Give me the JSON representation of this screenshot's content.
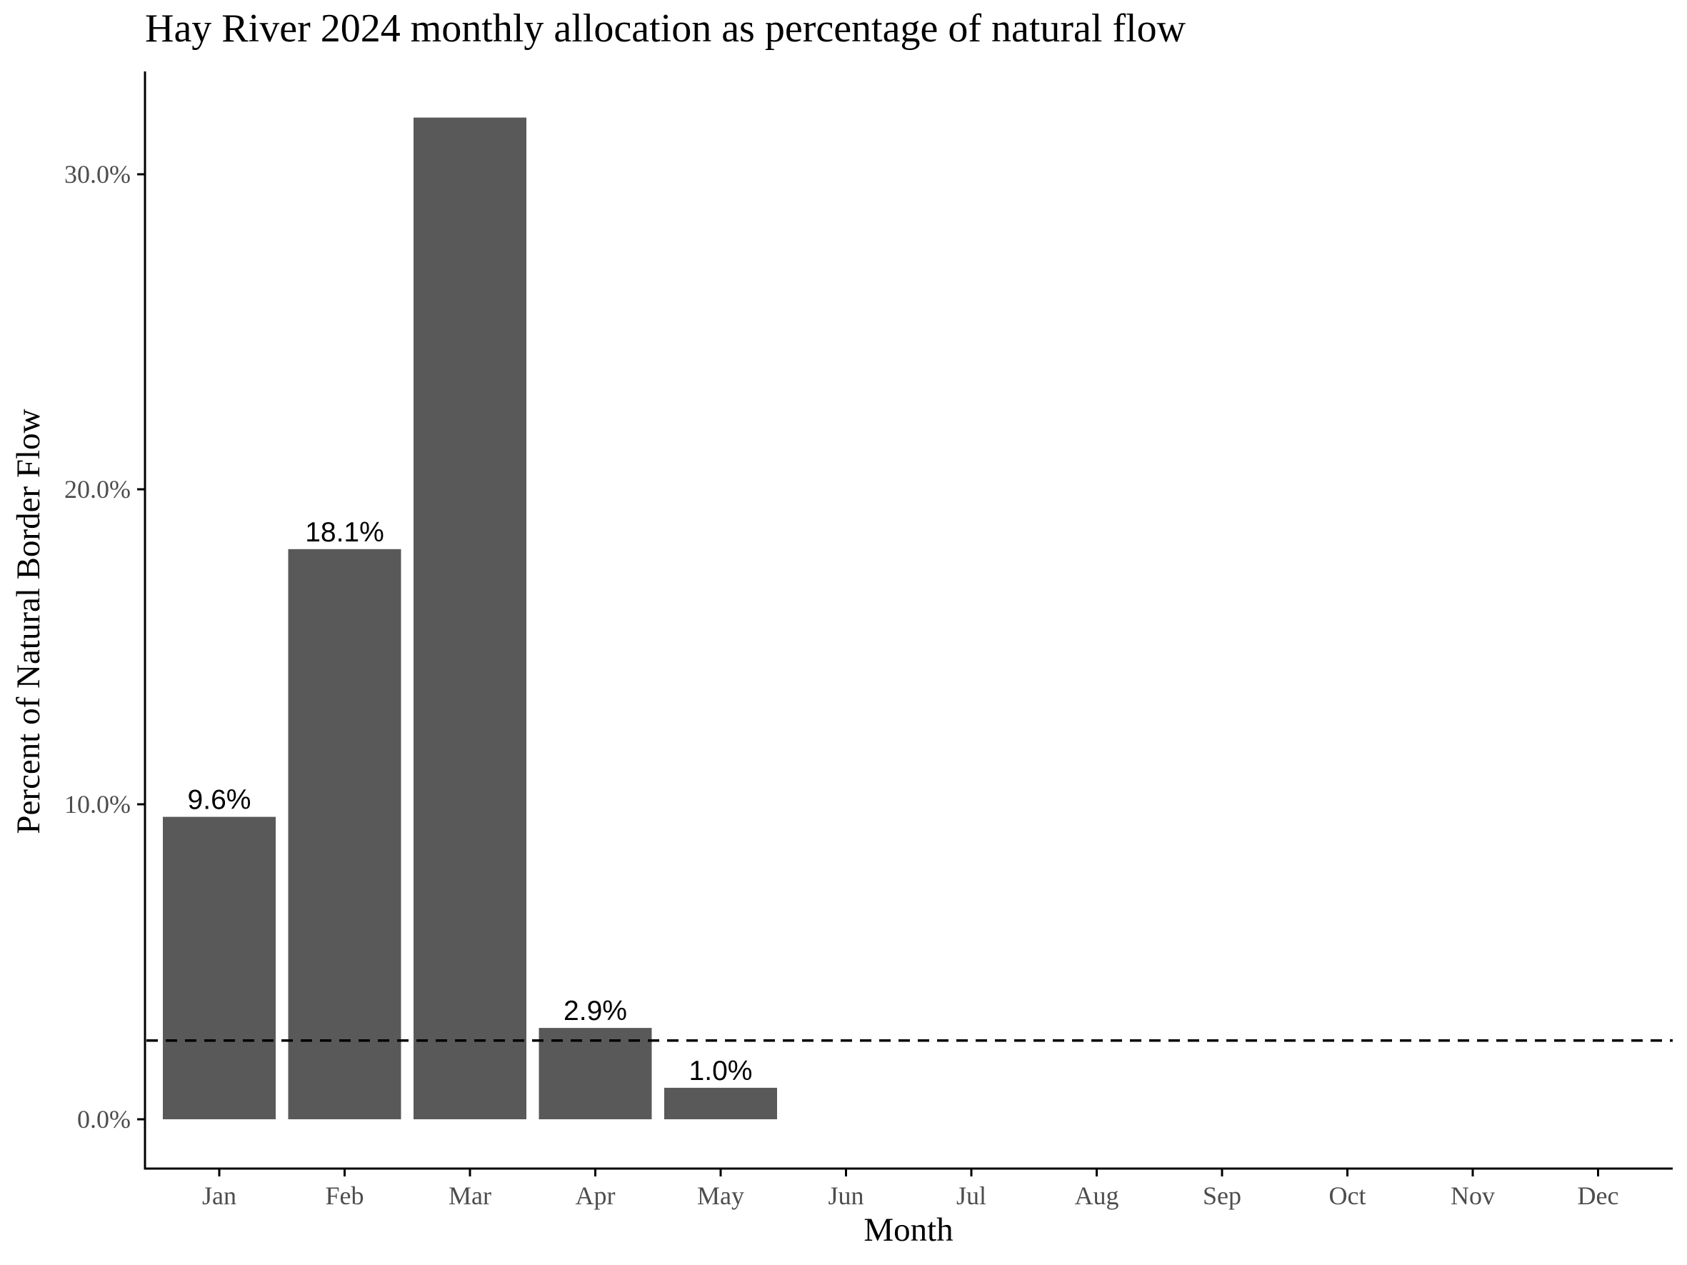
{
  "chart_data": {
    "type": "bar",
    "title": "Hay River 2024 monthly allocation as percentage of natural flow",
    "xlabel": "Month",
    "ylabel": "Percent of Natural Border Flow",
    "categories": [
      "Jan",
      "Feb",
      "Mar",
      "Apr",
      "May",
      "Jun",
      "Jul",
      "Aug",
      "Sep",
      "Oct",
      "Nov",
      "Dec"
    ],
    "values": [
      9.6,
      18.1,
      31.8,
      2.9,
      1.0,
      null,
      null,
      null,
      null,
      null,
      null,
      null
    ],
    "data_labels": [
      "9.6%",
      "18.1%",
      "",
      "2.9%",
      "1.0%",
      "",
      "",
      "",
      "",
      "",
      "",
      ""
    ],
    "yticks": [
      0,
      10,
      20,
      30
    ],
    "ytick_labels": [
      "0.0%",
      "10.0%",
      "20.0%",
      "30.0%"
    ],
    "ylim": [
      -1.5,
      33.5
    ],
    "reference_line": {
      "y": 2.5,
      "style": "dashed"
    },
    "grid": false,
    "legend": "none",
    "colors": {
      "bar": "#595959",
      "axis": "#000000",
      "tick_text": "#4d4d4d",
      "reference_line": "#000000"
    }
  }
}
